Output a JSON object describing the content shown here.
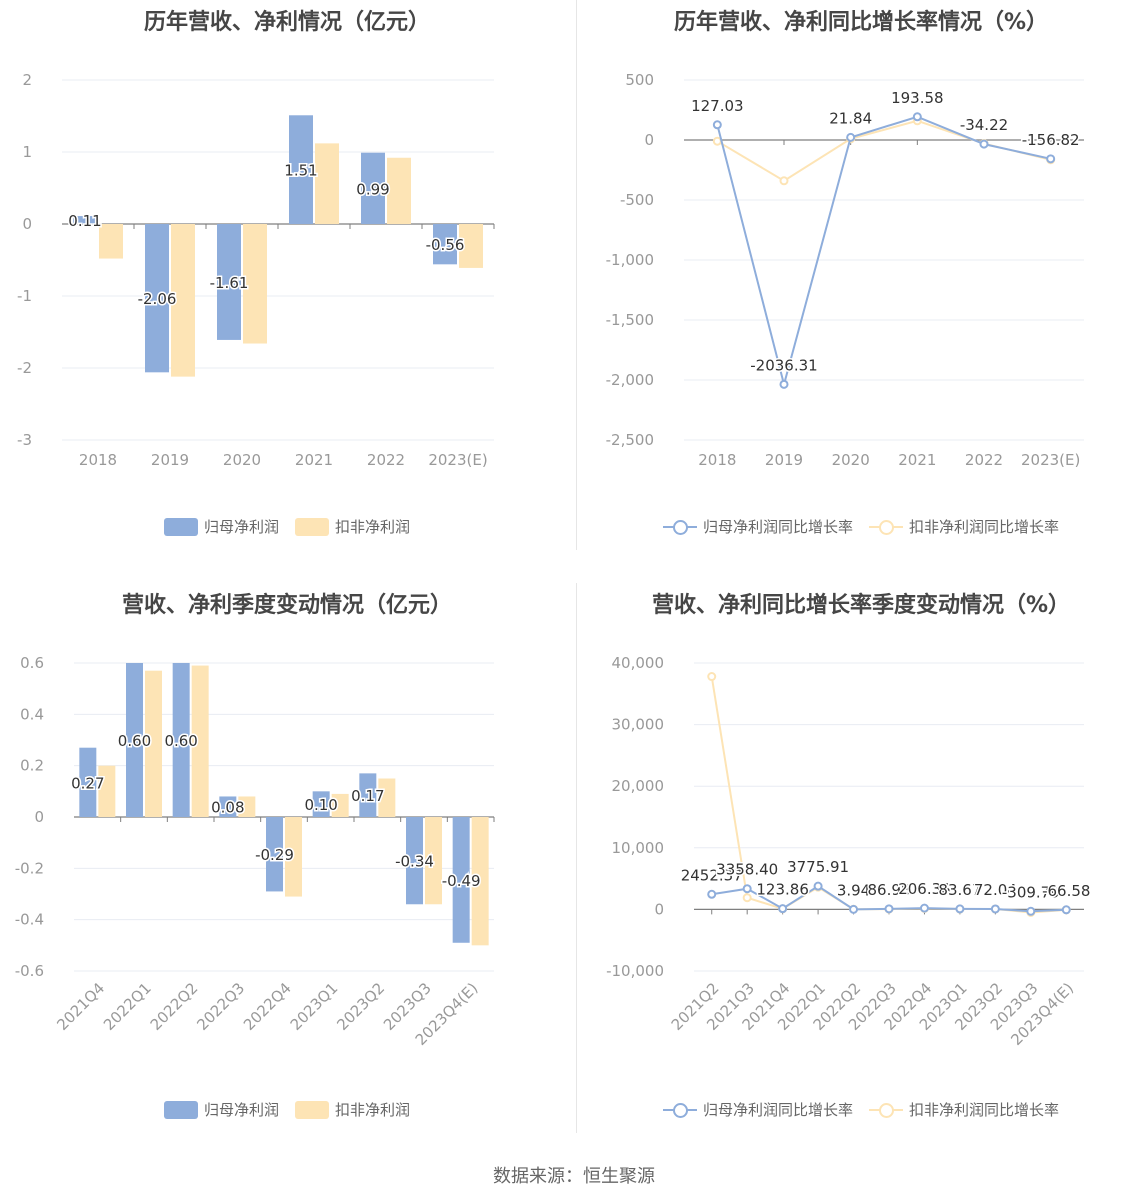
{
  "colors": {
    "blue": "#8eaddb",
    "yellow": "#fde4b5",
    "grid": "#e8ecf3",
    "axis": "#7f7f7f",
    "tick_text": "#999999"
  },
  "footer": "数据来源：恒生聚源",
  "chart_data": [
    {
      "type": "bar",
      "title": "历年营收、净利情况（亿元）",
      "categories": [
        "2018",
        "2019",
        "2020",
        "2021",
        "2022",
        "2023(E)"
      ],
      "ylim": [
        -3,
        2
      ],
      "yticks": [
        -3,
        -2,
        -1,
        0,
        1,
        2
      ],
      "series": [
        {
          "name": "归母净利润",
          "values": [
            0.11,
            -2.06,
            -1.61,
            1.51,
            0.99,
            -0.56
          ],
          "labels": [
            "0.11",
            "-2.06",
            "-1.61",
            "1.51",
            "0.99",
            "-0.56"
          ]
        },
        {
          "name": "扣非净利润",
          "values": [
            -0.48,
            -2.12,
            -1.66,
            1.12,
            0.92,
            -0.61
          ]
        }
      ],
      "legend": "bottom-center",
      "grid": true
    },
    {
      "type": "line",
      "title": "历年营收、净利同比增长率情况（%）",
      "categories": [
        "2018",
        "2019",
        "2020",
        "2021",
        "2022",
        "2023(E)"
      ],
      "ylim": [
        -2500,
        500
      ],
      "yticks": [
        -2500,
        -2000,
        -1500,
        -1000,
        -500,
        0,
        500
      ],
      "ytick_labels": [
        "-2,500",
        "-2,000",
        "-1,500",
        "-1,000",
        "-500",
        "0",
        "500"
      ],
      "series": [
        {
          "name": "归母净利润同比增长率",
          "values": [
            127.03,
            -2036.31,
            21.84,
            193.58,
            -34.22,
            -156.82
          ],
          "labels": [
            "127.03",
            "-2036.31",
            "21.84",
            "193.58",
            "-34.22",
            "-156.82"
          ]
        },
        {
          "name": "扣非净利润同比增长率",
          "values": [
            -10,
            -340,
            10,
            160,
            -30,
            -165
          ]
        }
      ],
      "legend": "bottom-center",
      "grid": true
    },
    {
      "type": "bar",
      "title": "营收、净利季度变动情况（亿元）",
      "categories": [
        "2021Q4",
        "2022Q1",
        "2022Q2",
        "2022Q3",
        "2022Q4",
        "2023Q1",
        "2023Q2",
        "2023Q3",
        "2023Q4(E)"
      ],
      "ylim": [
        -0.6,
        0.6
      ],
      "yticks": [
        -0.6,
        -0.4,
        -0.2,
        0,
        0.2,
        0.4,
        0.6
      ],
      "ytick_labels": [
        "-0.6",
        "-0.4",
        "-0.2",
        "0",
        "0.2",
        "0.4",
        "0.6"
      ],
      "series": [
        {
          "name": "归母净利润",
          "values": [
            0.27,
            0.6,
            0.6,
            0.08,
            -0.29,
            0.1,
            0.17,
            -0.34,
            -0.49
          ],
          "labels": [
            "0.27",
            "0.60",
            "0.60",
            "0.08",
            "-0.29",
            "0.10",
            "0.17",
            "-0.34",
            "-0.49"
          ]
        },
        {
          "name": "扣非净利润",
          "values": [
            0.2,
            0.57,
            0.59,
            0.08,
            -0.31,
            0.09,
            0.15,
            -0.34,
            -0.5
          ]
        }
      ],
      "legend": "bottom-center",
      "grid": true
    },
    {
      "type": "line",
      "title": "营收、净利同比增长率季度变动情况（%）",
      "categories": [
        "2021Q2",
        "2021Q3",
        "2021Q4",
        "2022Q1",
        "2022Q2",
        "2022Q3",
        "2022Q4",
        "2023Q1",
        "2023Q2",
        "2023Q3",
        "2023Q4(E)"
      ],
      "ylim": [
        -10000,
        40000
      ],
      "yticks": [
        -10000,
        0,
        10000,
        20000,
        30000,
        40000
      ],
      "ytick_labels": [
        "-10,000",
        "0",
        "10,000",
        "20,000",
        "30,000",
        "40,000"
      ],
      "series": [
        {
          "name": "归母净利润同比增长率",
          "values": [
            2452.37,
            3358.4,
            123.86,
            3775.91,
            3.94,
            86.98,
            206.38,
            83.67,
            72.04,
            -309.79,
            -66.58
          ],
          "labels": [
            "2452.37",
            "3358.40",
            "123.86",
            "3775.91",
            "3.94",
            "86.98",
            "206.38",
            "83.67",
            "72.04",
            "-309.79",
            "-66.58"
          ]
        },
        {
          "name": "扣非净利润同比增长率",
          "values": [
            37800,
            1900,
            100,
            3600,
            30,
            50,
            150,
            60,
            60,
            -500,
            -70
          ]
        }
      ],
      "legend": "bottom-center",
      "grid": true
    }
  ]
}
